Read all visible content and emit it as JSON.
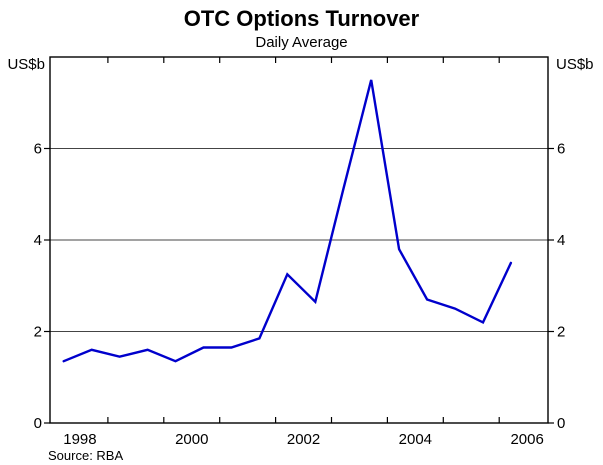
{
  "header": {
    "title": "OTC Options Turnover",
    "subtitle": "Daily Average"
  },
  "axis": {
    "unit_left": "US$b",
    "unit_right": "US$b"
  },
  "footer": {
    "source": "Source: RBA"
  },
  "chart_data": {
    "type": "line",
    "title": "OTC Options Turnover",
    "subtitle": "Daily Average",
    "ylabel_left": "US$b",
    "ylabel_right": "US$b",
    "source": "Source: RBA",
    "periods": [
      "H1 1998",
      "H2 1998",
      "H1 1999",
      "H2 1999",
      "H1 2000",
      "H2 2000",
      "H1 2001",
      "H2 2001",
      "H1 2002",
      "H2 2002",
      "H1 2003",
      "H2 2003",
      "H1 2004",
      "H2 2004",
      "H1 2005",
      "H2 2005",
      "H1 2006"
    ],
    "x": [
      1998.21,
      1998.71,
      1999.21,
      1999.71,
      2000.21,
      2000.71,
      2001.21,
      2001.71,
      2002.21,
      2002.71,
      2003.21,
      2003.71,
      2004.21,
      2004.71,
      2005.21,
      2005.71,
      2006.21
    ],
    "values": [
      1.35,
      1.6,
      1.45,
      1.6,
      1.35,
      1.65,
      1.65,
      1.85,
      3.25,
      2.65,
      5.1,
      7.5,
      3.8,
      2.7,
      2.5,
      2.2,
      3.5
    ],
    "ylim": [
      0,
      8
    ],
    "yticks": [
      0,
      2,
      4,
      6
    ],
    "gridlines": [
      2,
      4,
      6
    ],
    "x_axis_tick_years": [
      1999,
      2000,
      2001,
      2002,
      2003,
      2004,
      2005,
      2006
    ],
    "x_label_years": [
      1998,
      2000,
      2002,
      2004,
      2006
    ],
    "grid_on": true,
    "legend": "none",
    "line_color": "#0000CC",
    "frame_color": "#000000",
    "grid_color": "#444444",
    "text_color": "#000000"
  }
}
